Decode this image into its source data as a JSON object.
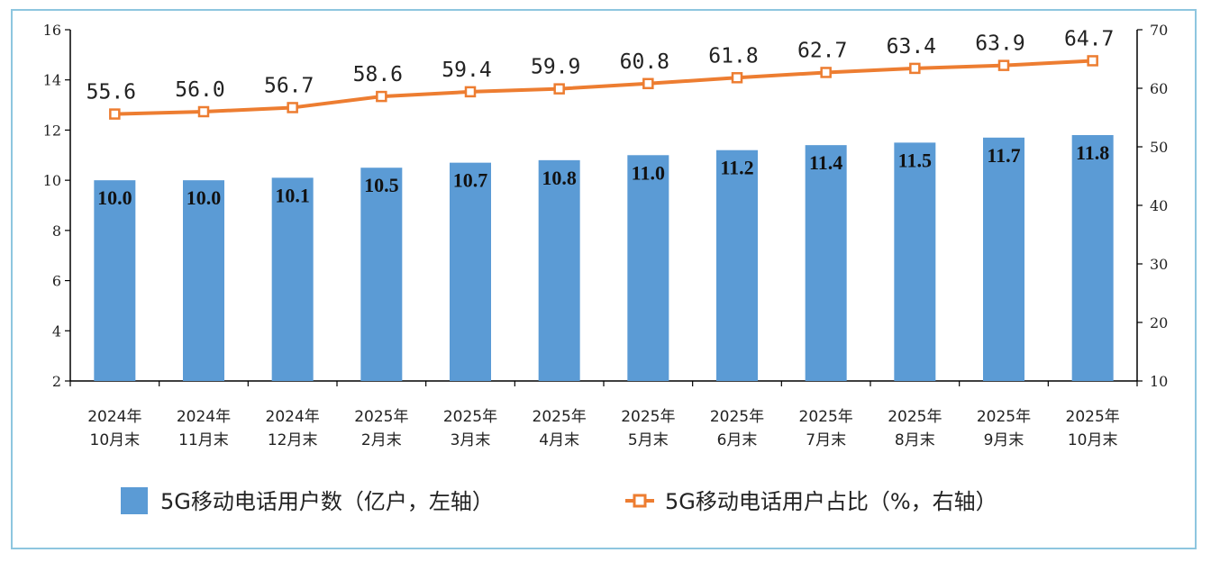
{
  "chart_data": {
    "type": "bar+line",
    "categories": [
      [
        "2024年",
        "10月末"
      ],
      [
        "2024年",
        "11月末"
      ],
      [
        "2024年",
        "12月末"
      ],
      [
        "2025年",
        "2月末"
      ],
      [
        "2025年",
        "3月末"
      ],
      [
        "2025年",
        "4月末"
      ],
      [
        "2025年",
        "5月末"
      ],
      [
        "2025年",
        "6月末"
      ],
      [
        "2025年",
        "7月末"
      ],
      [
        "2025年",
        "8月末"
      ],
      [
        "2025年",
        "9月末"
      ],
      [
        "2025年",
        "10月末"
      ]
    ],
    "series": [
      {
        "name": "5G移动电话用户数（亿户，左轴）",
        "type": "bar",
        "axis": "left",
        "color": "#5b9bd5",
        "values": [
          10.0,
          10.0,
          10.1,
          10.5,
          10.7,
          10.8,
          11.0,
          11.2,
          11.4,
          11.5,
          11.7,
          11.8
        ],
        "labels": [
          "10.0",
          "10.0",
          "10.1",
          "10.5",
          "10.7",
          "10.8",
          "11.0",
          "11.2",
          "11.4",
          "11.5",
          "11.7",
          "11.8"
        ]
      },
      {
        "name": "5G移动电话用户占比（%，右轴）",
        "type": "line",
        "axis": "right",
        "color": "#ed7d31",
        "values": [
          55.6,
          56.0,
          56.7,
          58.6,
          59.4,
          59.9,
          60.8,
          61.8,
          62.7,
          63.4,
          63.9,
          64.7
        ],
        "labels": [
          "55.6",
          "56.0",
          "56.7",
          "58.6",
          "59.4",
          "59.9",
          "60.8",
          "61.8",
          "62.7",
          "63.4",
          "63.9",
          "64.7"
        ]
      }
    ],
    "y_left": {
      "min": 2,
      "max": 16,
      "ticks": [
        "2",
        "4",
        "6",
        "8",
        "10",
        "12",
        "14",
        "16"
      ]
    },
    "y_right": {
      "min": 10,
      "max": 70,
      "ticks": [
        "10",
        "20",
        "30",
        "40",
        "50",
        "60",
        "70"
      ]
    },
    "grid": false,
    "legend": "bottom"
  }
}
